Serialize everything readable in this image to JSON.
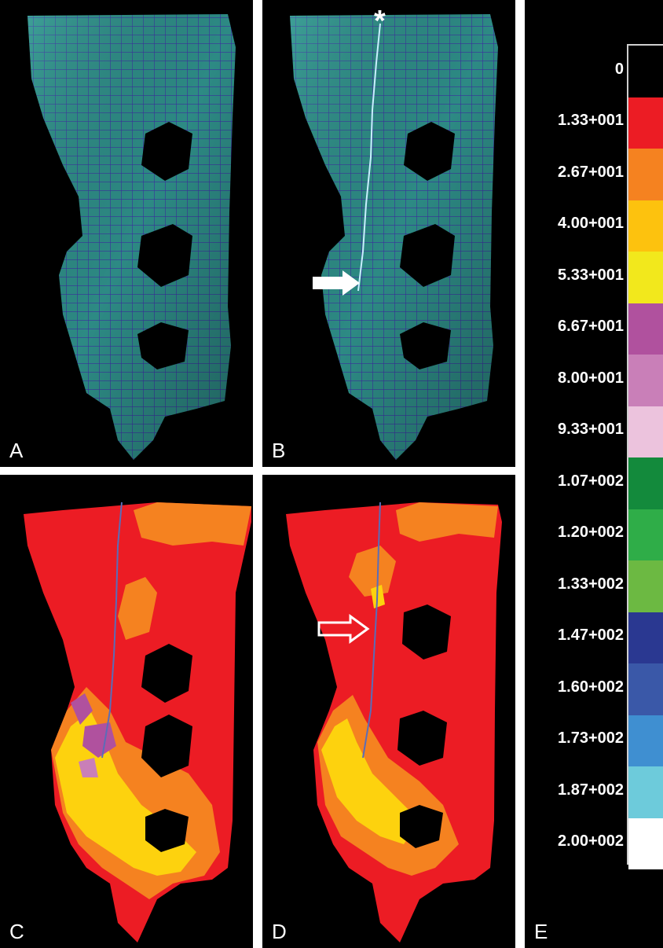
{
  "panels": {
    "a": {
      "label": "A"
    },
    "b": {
      "label": "B",
      "marker": "*"
    },
    "c": {
      "label": "C"
    },
    "d": {
      "label": "D"
    },
    "e": {
      "label": "E"
    }
  },
  "legend": {
    "entries": [
      {
        "label": "0",
        "color": "#000000"
      },
      {
        "label": "1.33+001",
        "color": "#ec1c24"
      },
      {
        "label": "2.67+001",
        "color": "#f58220"
      },
      {
        "label": "4.00+001",
        "color": "#fdc20e"
      },
      {
        "label": "5.33+001",
        "color": "#f2e81c"
      },
      {
        "label": "6.67+001",
        "color": "#b0519e"
      },
      {
        "label": "8.00+001",
        "color": "#c97fb8"
      },
      {
        "label": "9.33+001",
        "color": "#ecc3dd"
      },
      {
        "label": "1.07+002",
        "color": "#138a3c"
      },
      {
        "label": "1.20+002",
        "color": "#2fad48"
      },
      {
        "label": "1.33+002",
        "color": "#6cb942"
      },
      {
        "label": "1.47+002",
        "color": "#2a3891"
      },
      {
        "label": "1.60+002",
        "color": "#3a58a8"
      },
      {
        "label": "1.73+002",
        "color": "#3f8fd1"
      },
      {
        "label": "1.87+002",
        "color": "#6dcbdb"
      },
      {
        "label": "2.00+002",
        "color": "#ffffff"
      }
    ]
  },
  "colors": {
    "mesh_fill": "#2d8a84",
    "mesh_line": "#3a2f9e",
    "stress_red": "#ec1c24",
    "stress_orange": "#f58220",
    "stress_yellow": "#fdd20e",
    "stress_purple": "#b0519e",
    "arrow_white": "#ffffff"
  }
}
